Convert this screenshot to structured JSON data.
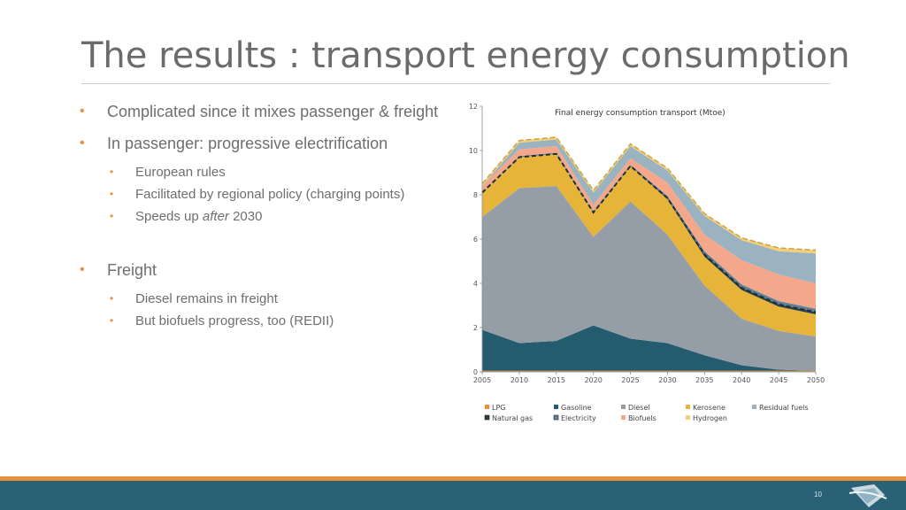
{
  "title": "The results : transport energy consumption",
  "bullets": {
    "b1": "Complicated since it mixes passenger & freight",
    "b2": "In passenger: progressive electrification",
    "b2_sub1": "European rules",
    "b2_sub2": "Facilitated by regional policy (charging points)",
    "b2_sub3_pre": "Speeds up ",
    "b2_sub3_em": "after",
    "b2_sub3_post": " 2030",
    "b3": "Freight",
    "b3_sub1": "Diesel remains in freight",
    "b3_sub2": "But biofuels progress, too (REDII)"
  },
  "page_number": "10",
  "colors": {
    "accent": "#e8903a",
    "footer": "#2b6177"
  },
  "chart_data": {
    "type": "area",
    "stacked": true,
    "title": "Final energy consumption transport (Mtoe)",
    "xlabel": "",
    "ylabel": "",
    "x": [
      2005,
      2010,
      2015,
      2020,
      2025,
      2030,
      2035,
      2040,
      2045,
      2050
    ],
    "ylim": [
      0,
      12
    ],
    "yticks": [
      0,
      2,
      4,
      6,
      8,
      10,
      12
    ],
    "series": [
      {
        "name": "LPG",
        "color": "#e8903a",
        "values": [
          0.05,
          0.05,
          0.05,
          0.05,
          0.05,
          0.05,
          0.05,
          0.05,
          0.05,
          0.05
        ]
      },
      {
        "name": "Gasoline",
        "color": "#245b6e",
        "values": [
          1.85,
          1.25,
          1.35,
          2.05,
          1.45,
          1.25,
          0.7,
          0.25,
          0.05,
          0.0
        ]
      },
      {
        "name": "Diesel",
        "color": "#959ea6",
        "values": [
          5.1,
          7.0,
          7.0,
          4.0,
          6.2,
          4.9,
          3.15,
          2.1,
          1.75,
          1.55
        ]
      },
      {
        "name": "Kerosene",
        "color": "#e7b43a",
        "values": [
          1.1,
          1.4,
          1.45,
          1.1,
          1.6,
          1.6,
          1.3,
          1.3,
          1.1,
          1.0
        ]
      },
      {
        "name": "Natural gas",
        "color": "#2b3d48",
        "values": [
          0.0,
          0.0,
          0.0,
          0.0,
          0.0,
          0.05,
          0.1,
          0.1,
          0.1,
          0.1
        ]
      },
      {
        "name": "Electricity",
        "color": "#5e8193",
        "values": [
          0.0,
          0.05,
          0.05,
          0.05,
          0.05,
          0.1,
          0.15,
          0.15,
          0.15,
          0.15
        ]
      },
      {
        "name": "Biofuels",
        "color": "#f4a78a",
        "values": [
          0.3,
          0.3,
          0.3,
          0.3,
          0.3,
          0.6,
          0.75,
          1.1,
          1.2,
          1.15
        ]
      },
      {
        "name": "Residual fuels",
        "color": "#9bb3c0",
        "values": [
          0.0,
          0.3,
          0.3,
          0.55,
          0.55,
          0.55,
          0.85,
          0.9,
          1.05,
          1.35
        ]
      },
      {
        "name": "Hydrogen",
        "color": "#f2cf78",
        "values": [
          0.1,
          0.1,
          0.1,
          0.1,
          0.1,
          0.1,
          0.1,
          0.1,
          0.15,
          0.15
        ]
      }
    ],
    "legend": [
      [
        "LPG",
        "Gasoline",
        "Diesel",
        "Kerosene",
        "Residual fuels"
      ],
      [
        "Natural gas",
        "Electricity",
        "Biofuels",
        "Hydrogen"
      ]
    ],
    "legend_position": "bottom"
  }
}
